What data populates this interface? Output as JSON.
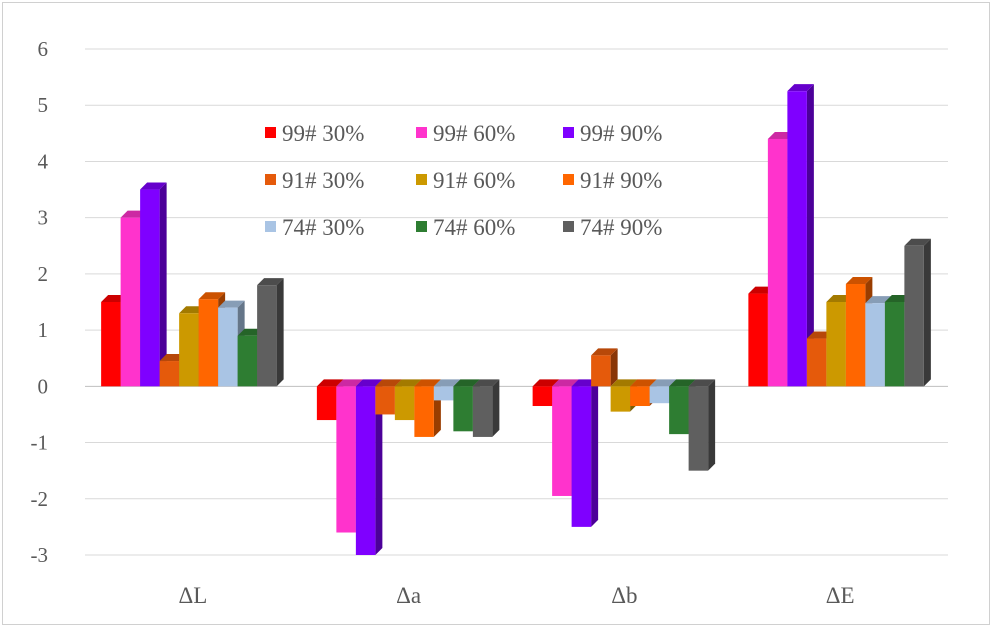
{
  "chart_data": {
    "type": "bar",
    "title": "",
    "xlabel": "",
    "ylabel": "",
    "categories": [
      "ΔL",
      "Δa",
      "Δb",
      "ΔE"
    ],
    "ylim": [
      -3,
      6
    ],
    "yticks": [
      6,
      5,
      4,
      3,
      2,
      1,
      0,
      -1,
      -2,
      -3
    ],
    "grid": true,
    "legend_position": "top-center",
    "series": [
      {
        "name": "99# 30%",
        "color": "#ff0000",
        "values": [
          1.5,
          -0.6,
          -0.35,
          1.65
        ]
      },
      {
        "name": "99# 60%",
        "color": "#ff33cc",
        "values": [
          3.0,
          -2.6,
          -1.95,
          4.4
        ]
      },
      {
        "name": "99# 90%",
        "color": "#7f00ff",
        "values": [
          3.5,
          -3.0,
          -2.5,
          5.25
        ]
      },
      {
        "name": "91# 30%",
        "color": "#e55a0b",
        "values": [
          0.45,
          -0.5,
          0.55,
          0.85
        ]
      },
      {
        "name": "91# 60%",
        "color": "#cc9900",
        "values": [
          1.3,
          -0.6,
          -0.45,
          1.5
        ]
      },
      {
        "name": "91# 90%",
        "color": "#ff6600",
        "values": [
          1.55,
          -0.9,
          -0.35,
          1.82
        ]
      },
      {
        "name": "74# 30%",
        "color": "#a9c4e4",
        "values": [
          1.4,
          -0.25,
          -0.3,
          1.48
        ]
      },
      {
        "name": "74# 60%",
        "color": "#2e7d32",
        "values": [
          0.9,
          -0.8,
          -0.85,
          1.5
        ]
      },
      {
        "name": "74# 90%",
        "color": "#5f5f5f",
        "values": [
          1.8,
          -0.9,
          -1.5,
          2.5
        ]
      }
    ]
  }
}
